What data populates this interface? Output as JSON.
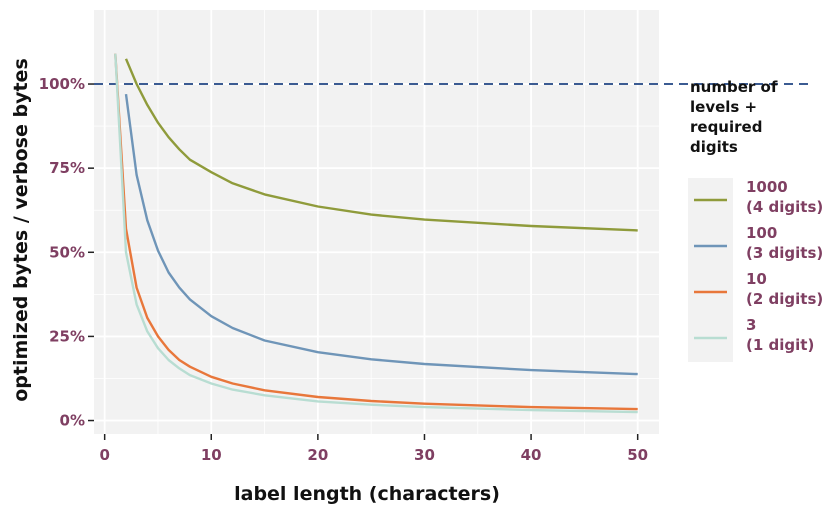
{
  "chart_data": {
    "type": "line",
    "xlabel": "label length (characters)",
    "ylabel": "optimized bytes / verbose bytes",
    "xlim": [
      -1,
      52
    ],
    "ylim": [
      -0.04,
      1.22
    ],
    "x_ticks": [
      0,
      10,
      20,
      30,
      40,
      50
    ],
    "x_tick_labels": [
      "0",
      "10",
      "20",
      "30",
      "40",
      "50"
    ],
    "y_ticks": [
      0,
      0.25,
      0.5,
      0.75,
      1.0
    ],
    "y_tick_labels": [
      "0%",
      "25%",
      "50%",
      "75%",
      "100%"
    ],
    "reference_line": {
      "y": 1.0,
      "style": "dashed",
      "color": "#3b5b92"
    },
    "grid": true,
    "legend": {
      "title": [
        "number of",
        "levels +",
        "required",
        "digits"
      ],
      "placement": "right",
      "entries": [
        {
          "lines": [
            "1000",
            "(4 digits)"
          ],
          "color": "#8f9b3b"
        },
        {
          "lines": [
            "100",
            "(3 digits)"
          ],
          "color": "#6f95b8"
        },
        {
          "lines": [
            "10",
            "(2 digits)"
          ],
          "color": "#e8773b"
        },
        {
          "lines": [
            "3",
            "(1 digit)"
          ],
          "color": "#b8ddd2"
        }
      ]
    },
    "series": [
      {
        "levels": 1000,
        "color": "#8f9b3b",
        "x": [
          2,
          3,
          4,
          5,
          6,
          7,
          8,
          10,
          12,
          15,
          20,
          25,
          30,
          40,
          50
        ],
        "y": [
          1.075,
          1.0,
          0.938,
          0.885,
          0.842,
          0.806,
          0.775,
          0.738,
          0.705,
          0.672,
          0.636,
          0.612,
          0.597,
          0.578,
          0.565
        ]
      },
      {
        "levels": 100,
        "color": "#6f95b8",
        "x": [
          2,
          3,
          4,
          5,
          6,
          7,
          8,
          10,
          12,
          15,
          20,
          25,
          30,
          40,
          50
        ],
        "y": [
          0.97,
          0.73,
          0.595,
          0.505,
          0.44,
          0.395,
          0.36,
          0.31,
          0.275,
          0.238,
          0.203,
          0.182,
          0.168,
          0.15,
          0.138
        ]
      },
      {
        "levels": 10,
        "color": "#e8773b",
        "x": [
          1,
          2,
          3,
          4,
          5,
          6,
          7,
          8,
          10,
          12,
          15,
          20,
          25,
          30,
          40,
          50
        ],
        "y": [
          1.09,
          0.57,
          0.395,
          0.305,
          0.25,
          0.21,
          0.18,
          0.16,
          0.13,
          0.11,
          0.09,
          0.07,
          0.058,
          0.05,
          0.04,
          0.034
        ]
      },
      {
        "levels": 3,
        "color": "#b8ddd2",
        "x": [
          1,
          2,
          3,
          4,
          5,
          6,
          7,
          8,
          10,
          12,
          15,
          20,
          25,
          30,
          40,
          50
        ],
        "y": [
          1.09,
          0.5,
          0.345,
          0.265,
          0.215,
          0.18,
          0.155,
          0.135,
          0.11,
          0.092,
          0.075,
          0.057,
          0.047,
          0.04,
          0.031,
          0.025
        ]
      }
    ]
  }
}
